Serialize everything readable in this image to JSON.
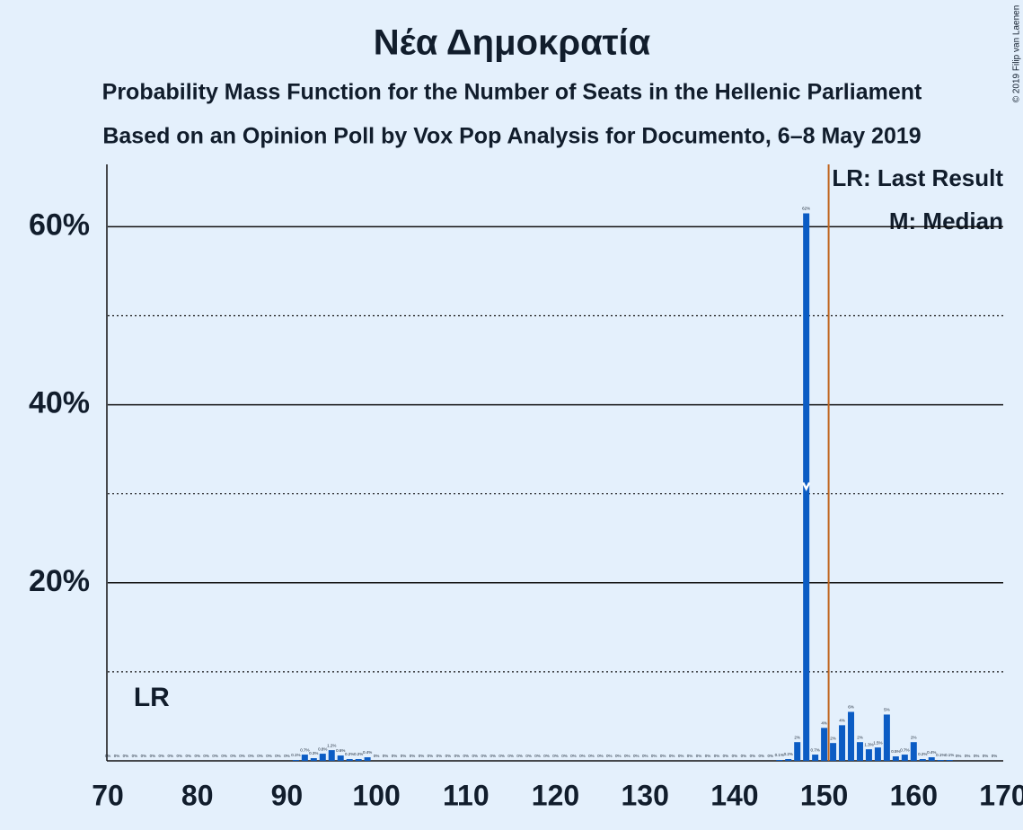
{
  "chart_data": {
    "type": "bar",
    "title": "Νέα Δημοκρατία",
    "subtitle": "Probability Mass Function for the Number of Seats in the Hellenic Parliament",
    "subtitle2": "Based on an Opinion Poll by Vox Pop Analysis for Documento, 6–8 May 2019",
    "copyright": "© 2019 Filip van Laenen",
    "legend": [
      "LR: Last Result",
      "M: Median"
    ],
    "last_result": 75,
    "last_result_label": "LR",
    "median": 148,
    "majority_line": 150.5,
    "color": "#0b5cc4",
    "majority_color": "#c0651e",
    "x": [
      70,
      71,
      72,
      73,
      74,
      75,
      76,
      77,
      78,
      79,
      80,
      81,
      82,
      83,
      84,
      85,
      86,
      87,
      88,
      89,
      90,
      91,
      92,
      93,
      94,
      95,
      96,
      97,
      98,
      99,
      100,
      101,
      102,
      103,
      104,
      105,
      106,
      107,
      108,
      109,
      110,
      111,
      112,
      113,
      114,
      115,
      116,
      117,
      118,
      119,
      120,
      121,
      122,
      123,
      124,
      125,
      126,
      127,
      128,
      129,
      130,
      131,
      132,
      133,
      134,
      135,
      136,
      137,
      138,
      139,
      140,
      141,
      142,
      143,
      144,
      145,
      146,
      147,
      148,
      149,
      150,
      151,
      152,
      153,
      154,
      155,
      156,
      157,
      158,
      159,
      160,
      161,
      162,
      163,
      164,
      165,
      166,
      167,
      168,
      169
    ],
    "values": [
      0,
      0,
      0,
      0,
      0,
      0,
      0,
      0,
      0,
      0,
      0,
      0,
      0,
      0,
      0,
      0,
      0,
      0,
      0,
      0,
      0,
      0.1,
      0.7,
      0.3,
      0.8,
      1.2,
      0.6,
      0.2,
      0.2,
      0.4,
      0,
      0,
      0,
      0,
      0,
      0,
      0,
      0,
      0,
      0,
      0,
      0,
      0,
      0,
      0,
      0,
      0,
      0,
      0,
      0,
      0,
      0,
      0,
      0,
      0,
      0,
      0,
      0,
      0,
      0,
      0,
      0,
      0,
      0,
      0,
      0,
      0,
      0,
      0,
      0,
      0,
      0,
      0,
      0,
      0,
      0.1,
      0.2,
      2.1,
      61.5,
      0.7,
      3.7,
      2.0,
      4.0,
      5.5,
      2.1,
      1.3,
      1.5,
      5.2,
      0.5,
      0.7,
      2.1,
      0.2,
      0.4,
      0.1,
      0.1,
      0,
      0,
      0,
      0,
      0
    ],
    "value_labels": [
      "0%",
      "0%",
      "0%",
      "0%",
      "0%",
      "0%",
      "0%",
      "0%",
      "0%",
      "0%",
      "0%",
      "0%",
      "0%",
      "0%",
      "0%",
      "0%",
      "0%",
      "0%",
      "0%",
      "0%",
      "0%",
      "0.1%",
      "0.7%",
      "0.3%",
      "0.8%",
      "1.2%",
      "0.6%",
      "0.2%",
      "0.2%",
      "0.4%",
      "0%",
      "0%",
      "0%",
      "0%",
      "0%",
      "0%",
      "0%",
      "0%",
      "0%",
      "0%",
      "0%",
      "0%",
      "0%",
      "0%",
      "0%",
      "0%",
      "0%",
      "0%",
      "0%",
      "0%",
      "0%",
      "0%",
      "0%",
      "0%",
      "0%",
      "0%",
      "0%",
      "0%",
      "0%",
      "0%",
      "0%",
      "0%",
      "0%",
      "0%",
      "0%",
      "0%",
      "0%",
      "0%",
      "0%",
      "0%",
      "0%",
      "0%",
      "0%",
      "0%",
      "0%",
      "0.1%",
      "0.2%",
      "2%",
      "62%",
      "0.7%",
      "4%",
      "2%",
      "4%",
      "6%",
      "2%",
      "1.3%",
      "1.5%",
      "5%",
      "0.5%",
      "0.7%",
      "2%",
      "0.2%",
      "0.4%",
      "0.1%",
      "0.1%",
      "0%",
      "0%",
      "0%",
      "0%",
      "0%"
    ],
    "xlim": [
      70,
      170
    ],
    "xticks": [
      70,
      80,
      90,
      100,
      110,
      120,
      130,
      140,
      150,
      160,
      170
    ],
    "ylim": [
      0,
      67
    ],
    "yticks": [
      {
        "value": 20,
        "label": "20%"
      },
      {
        "value": 40,
        "label": "40%"
      },
      {
        "value": 60,
        "label": "60%"
      }
    ],
    "minor_yticks": [
      10,
      30,
      50
    ],
    "grid": true
  }
}
